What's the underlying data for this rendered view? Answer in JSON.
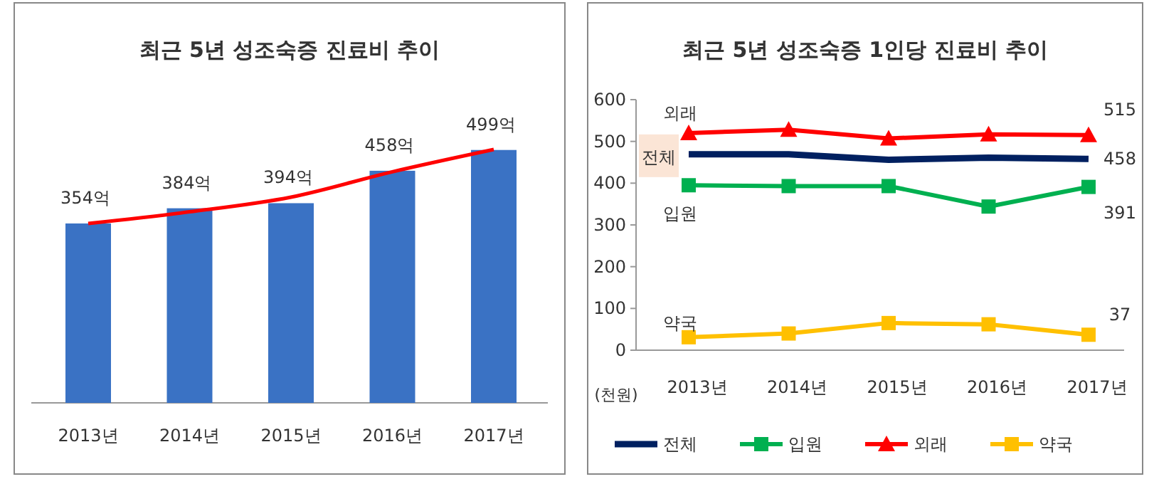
{
  "chart_data": [
    {
      "type": "bar",
      "title": "최근 5년 성조숙증 진료비 추이",
      "categories": [
        "2013년",
        "2014년",
        "2015년",
        "2016년",
        "2017년"
      ],
      "series": [
        {
          "type": "bar",
          "color": "#3a72c4",
          "values": [
            354,
            384,
            394,
            458,
            499
          ],
          "value_labels": [
            "354억",
            "384억",
            "394억",
            "458억",
            "499억"
          ]
        },
        {
          "type": "line",
          "color": "#ff0000",
          "values": [
            354,
            377,
            406,
            456,
            500
          ]
        }
      ]
    },
    {
      "type": "line",
      "title": "최근 5년 성조숙증 1인당 진료비 추이",
      "ylabel": "(천원)",
      "categories": [
        "2013년",
        "2014년",
        "2015년",
        "2016년",
        "2017년"
      ],
      "ylim": [
        0,
        600
      ],
      "yticks": [
        0,
        100,
        200,
        300,
        400,
        500,
        600
      ],
      "legend": "bottom",
      "grid": false,
      "series": [
        {
          "name": "전체",
          "color": "#002060",
          "marker": "none",
          "values": [
            469,
            469,
            456,
            461,
            458
          ],
          "value_labels": [
            null,
            null,
            null,
            null,
            "458"
          ]
        },
        {
          "name": "입원",
          "color": "#00b050",
          "marker": "square",
          "values": [
            395,
            393,
            393,
            344,
            391
          ],
          "value_labels": [
            null,
            null,
            null,
            null,
            "391"
          ]
        },
        {
          "name": "외래",
          "color": "#ff0000",
          "marker": "triangle",
          "values": [
            520,
            528,
            507,
            517,
            515
          ],
          "value_labels": [
            null,
            null,
            null,
            null,
            "515"
          ]
        },
        {
          "name": "약국",
          "color": "#ffc000",
          "marker": "square",
          "values": [
            31,
            40,
            65,
            62,
            37
          ],
          "value_labels": [
            null,
            null,
            null,
            null,
            "37"
          ]
        }
      ]
    }
  ]
}
